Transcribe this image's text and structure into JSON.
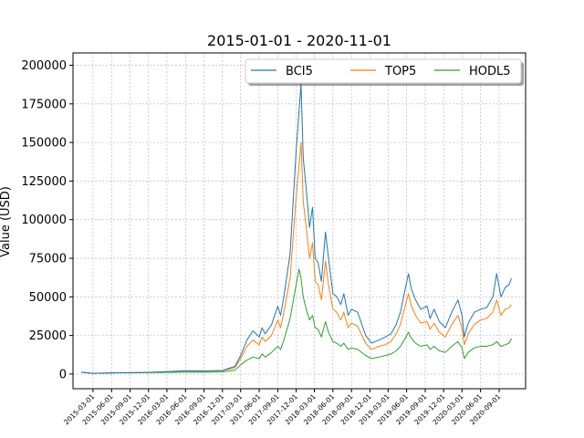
{
  "chart_data": {
    "type": "line",
    "title": "2015-01-01 - 2020-11-01",
    "xlabel": "",
    "ylabel": "Value (USD)",
    "x_range": [
      "2015-01-01",
      "2020-11-01"
    ],
    "ylim": [
      -9500,
      208000
    ],
    "y_ticks": [
      0,
      25000,
      50000,
      75000,
      100000,
      125000,
      150000,
      175000,
      200000
    ],
    "y_tick_labels": [
      "0",
      "25000",
      "50000",
      "75000",
      "100000",
      "125000",
      "150000",
      "175000",
      "200000"
    ],
    "x_tick_labels": [
      "2015-03-01",
      "2015-06-01",
      "2015-09-01",
      "2015-12-01",
      "2016-03-01",
      "2016-06-01",
      "2016-09-01",
      "2016-12-01",
      "2017-03-01",
      "2017-06-01",
      "2017-09-01",
      "2017-12-01",
      "2018-03-01",
      "2018-06-01",
      "2018-09-01",
      "2018-12-01",
      "2019-03-01",
      "2019-06-01",
      "2019-09-01",
      "2019-12-01",
      "2020-03-01",
      "2020-06-01",
      "2020-09-01"
    ],
    "grid": true,
    "legend": "top-right",
    "x": [
      "2015-01-01",
      "2015-03-01",
      "2015-06-01",
      "2015-09-01",
      "2015-12-01",
      "2016-03-01",
      "2016-06-01",
      "2016-09-01",
      "2016-12-01",
      "2017-02-01",
      "2017-03-01",
      "2017-04-01",
      "2017-05-01",
      "2017-06-01",
      "2017-06-15",
      "2017-07-01",
      "2017-08-01",
      "2017-09-01",
      "2017-09-15",
      "2017-10-01",
      "2017-11-01",
      "2017-12-01",
      "2017-12-15",
      "2017-12-25",
      "2018-01-05",
      "2018-01-20",
      "2018-02-05",
      "2018-02-20",
      "2018-03-05",
      "2018-03-20",
      "2018-04-05",
      "2018-04-25",
      "2018-05-10",
      "2018-06-01",
      "2018-06-20",
      "2018-07-10",
      "2018-07-25",
      "2018-08-15",
      "2018-09-01",
      "2018-10-01",
      "2018-11-10",
      "2018-12-10",
      "2019-01-15",
      "2019-02-15",
      "2019-03-15",
      "2019-04-10",
      "2019-05-01",
      "2019-05-20",
      "2019-06-10",
      "2019-06-25",
      "2019-07-15",
      "2019-08-10",
      "2019-09-10",
      "2019-09-25",
      "2019-10-15",
      "2019-11-10",
      "2019-12-10",
      "2020-01-10",
      "2020-02-10",
      "2020-03-01",
      "2020-03-13",
      "2020-04-01",
      "2020-05-01",
      "2020-06-01",
      "2020-07-01",
      "2020-08-01",
      "2020-08-20",
      "2020-09-10",
      "2020-10-01",
      "2020-10-20",
      "2020-11-01"
    ],
    "series": [
      {
        "name": "BCI5",
        "color": "#1f77b4",
        "values": [
          1200,
          500,
          800,
          900,
          1100,
          1600,
          2200,
          2000,
          2300,
          5000,
          12000,
          22000,
          28000,
          24000,
          30000,
          26000,
          32000,
          44000,
          38000,
          50000,
          78000,
          145000,
          170000,
          188000,
          140000,
          120000,
          95000,
          108000,
          75000,
          72000,
          60000,
          92000,
          75000,
          52000,
          50000,
          45000,
          52000,
          38000,
          42000,
          40000,
          25000,
          20000,
          22000,
          24000,
          26000,
          32000,
          40000,
          52000,
          65000,
          55000,
          48000,
          42000,
          44000,
          36000,
          42000,
          34000,
          30000,
          40000,
          48000,
          38000,
          24000,
          33000,
          40000,
          42000,
          43000,
          50000,
          65000,
          50000,
          56000,
          58000,
          62000
        ]
      },
      {
        "name": "TOP5",
        "color": "#ff7f0e",
        "values": [
          1200,
          500,
          800,
          900,
          1100,
          1500,
          2000,
          1800,
          2100,
          4200,
          10000,
          18000,
          22000,
          19000,
          24000,
          21000,
          25000,
          35000,
          30000,
          40000,
          62000,
          115000,
          135000,
          150000,
          112000,
          95000,
          75000,
          85000,
          60000,
          58000,
          48000,
          73000,
          58000,
          42000,
          40000,
          35000,
          40000,
          30000,
          33000,
          31000,
          20000,
          16000,
          18000,
          19000,
          21000,
          26000,
          32000,
          42000,
          52000,
          44000,
          38000,
          33000,
          34000,
          29000,
          33000,
          27000,
          24000,
          32000,
          38000,
          30000,
          19000,
          26000,
          32000,
          35000,
          36000,
          40000,
          48000,
          38000,
          42000,
          43000,
          45000
        ]
      },
      {
        "name": "HODL5",
        "color": "#2ca02c",
        "values": [
          1200,
          500,
          700,
          800,
          900,
          1100,
          1300,
          1200,
          1400,
          2500,
          6000,
          9000,
          11000,
          10000,
          13000,
          11000,
          14000,
          18000,
          16000,
          22000,
          36000,
          58000,
          68000,
          62000,
          50000,
          42000,
          35000,
          38000,
          30000,
          29000,
          24000,
          34000,
          27000,
          21000,
          20000,
          18000,
          20000,
          16000,
          17000,
          16000,
          12000,
          10000,
          11000,
          12000,
          13000,
          15000,
          18000,
          22000,
          27000,
          23000,
          20000,
          18000,
          19000,
          16000,
          18000,
          15000,
          14000,
          18000,
          21000,
          17000,
          10000,
          14000,
          17000,
          18000,
          18000,
          19000,
          21000,
          18000,
          19000,
          20000,
          23000
        ]
      }
    ]
  }
}
